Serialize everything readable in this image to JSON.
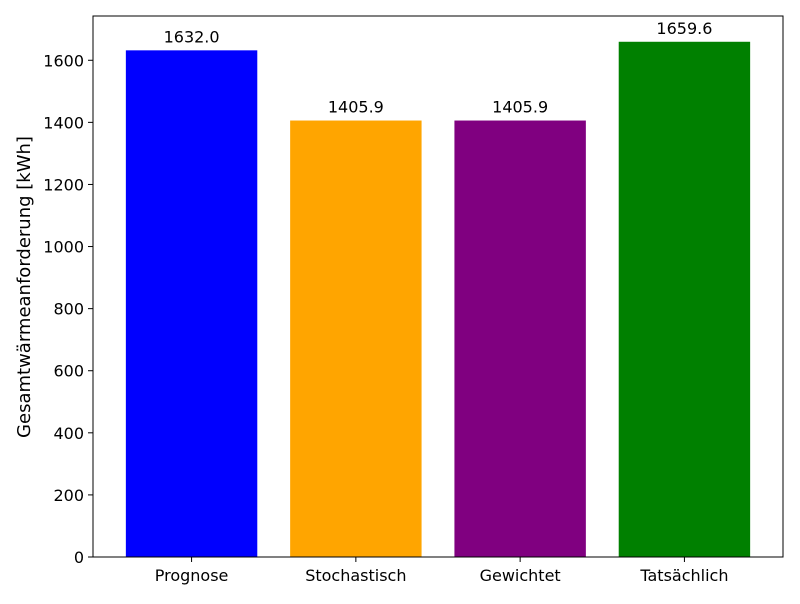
{
  "chart_data": {
    "type": "bar",
    "title": "",
    "xlabel": "",
    "ylabel": "Gesamtwärmeanforderung [kWh]",
    "categories": [
      "Prognose",
      "Stochastisch",
      "Gewichtet",
      "Tatsächlich"
    ],
    "values": [
      1632.0,
      1405.9,
      1405.9,
      1659.6
    ],
    "value_labels": [
      "1632.0",
      "1405.9",
      "1405.9",
      "1659.6"
    ],
    "colors": [
      "#0000ff",
      "#ffa500",
      "#800080",
      "#008000"
    ],
    "ylim": [
      0,
      1742.6
    ],
    "yticks": [
      0,
      200,
      400,
      600,
      800,
      1000,
      1200,
      1400,
      1600
    ],
    "grid": false,
    "legend": "none"
  }
}
